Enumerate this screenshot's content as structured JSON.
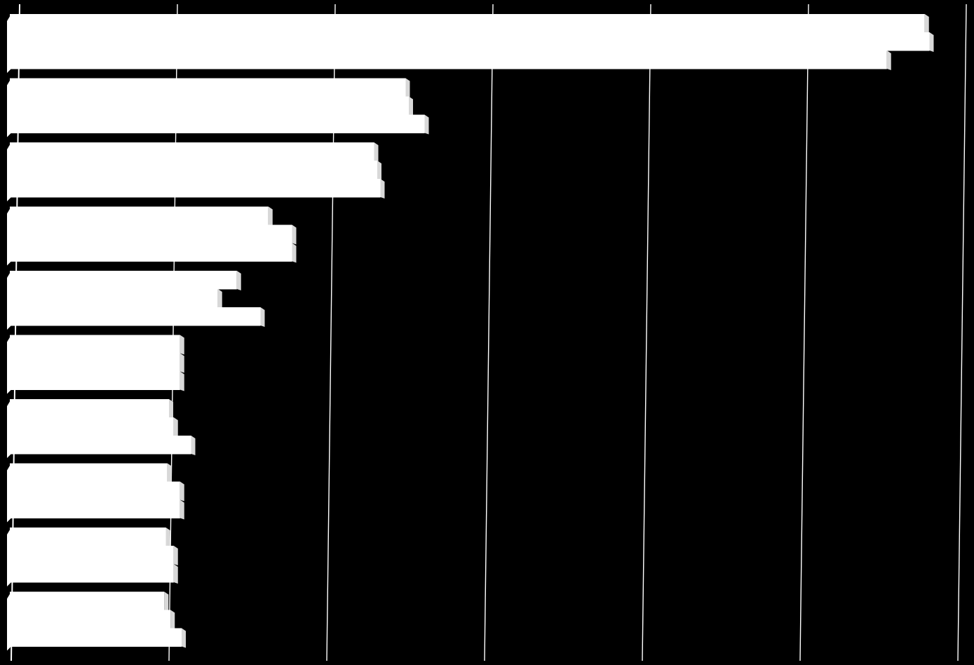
{
  "chart_data": {
    "type": "bar",
    "orientation": "horizontal",
    "stacked": false,
    "grid": true,
    "legend": "none",
    "xlim": [
      0,
      6
    ],
    "title": "",
    "xlabel": "",
    "ylabel": "",
    "categories": [
      "",
      "",
      "",
      "",
      "",
      "",
      "",
      "",
      "",
      ""
    ],
    "series": [
      {
        "values": [
          5.79,
          2.5,
          2.3,
          1.63,
          1.43,
          1.07,
          1.0,
          0.99,
          0.98,
          0.97
        ]
      },
      {
        "values": [
          5.82,
          2.52,
          2.32,
          1.78,
          1.31,
          1.07,
          1.03,
          1.07,
          1.03,
          1.01
        ]
      },
      {
        "values": [
          5.55,
          2.62,
          2.34,
          1.78,
          1.58,
          1.07,
          1.14,
          1.07,
          1.03,
          1.08
        ]
      }
    ],
    "colors": {
      "background": "#000000",
      "bar_fill": "#ffffff",
      "bar_edge": "#d8d8d8",
      "gridline": "#ffffff"
    }
  }
}
